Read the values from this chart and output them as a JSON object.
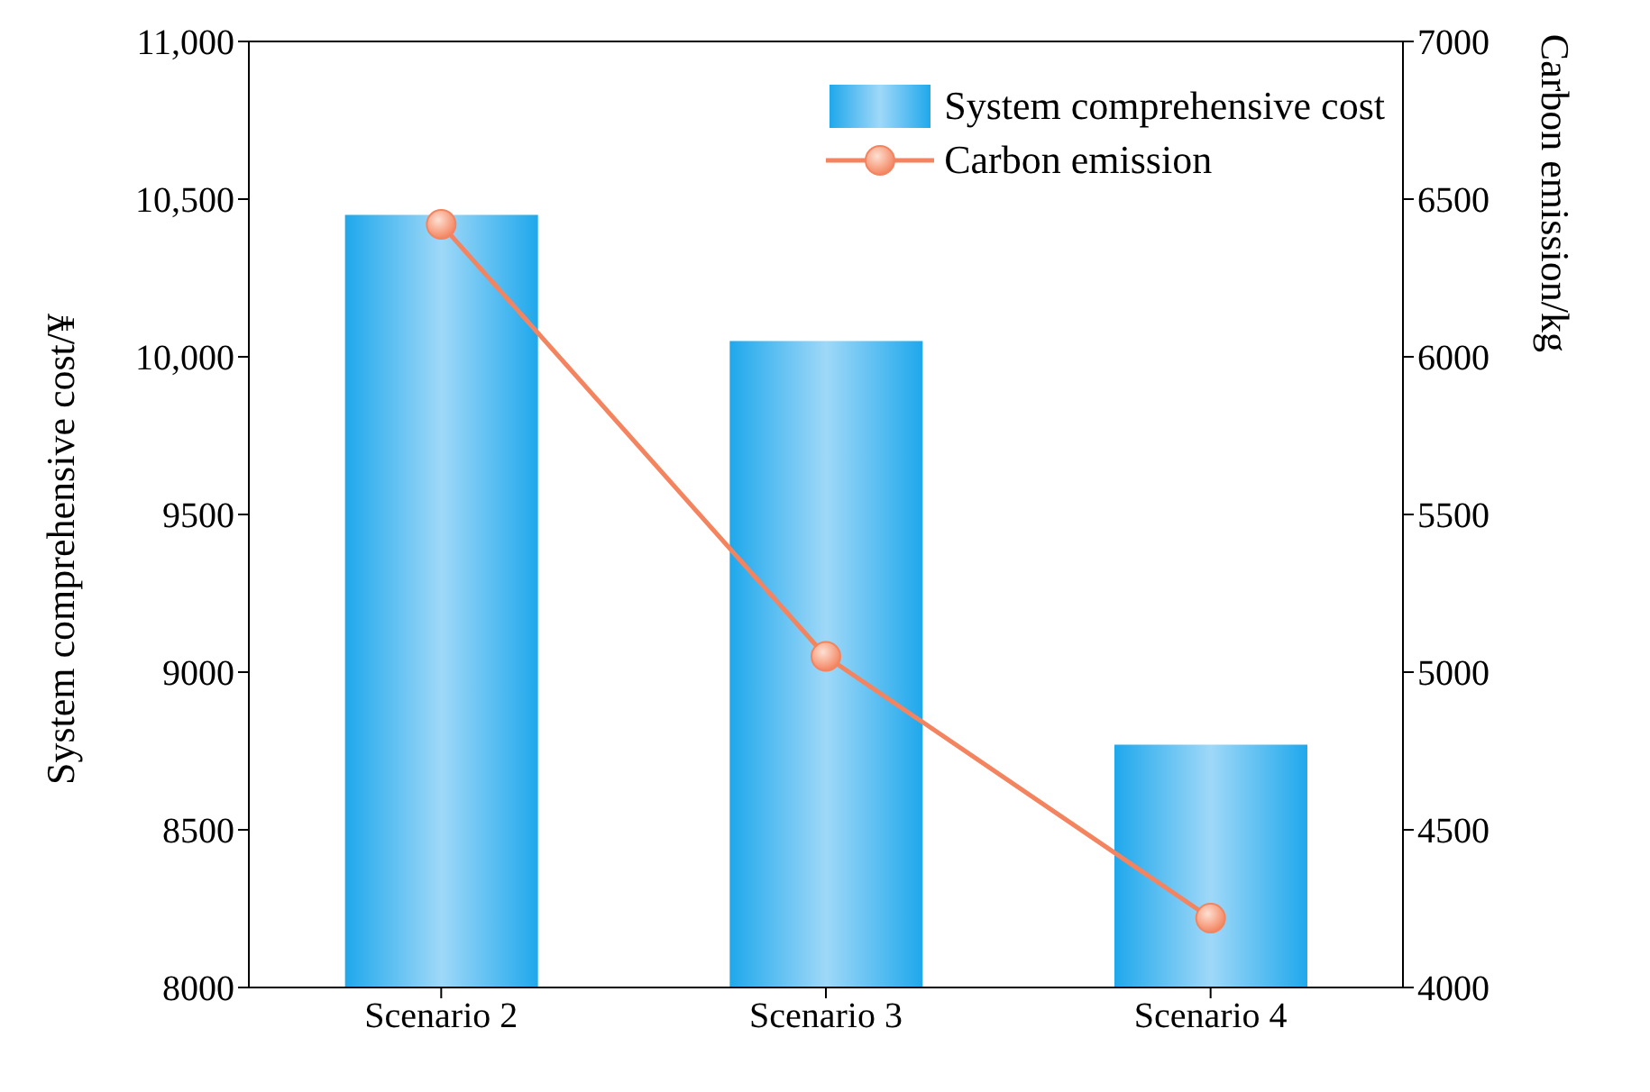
{
  "chart_data": {
    "type": "bar",
    "categories": [
      "Scenario 2",
      "Scenario 3",
      "Scenario 4"
    ],
    "ylabel": "System comprehensive cost/¥",
    "y2label": "Carbon emission/kg",
    "ylim": [
      8000,
      11000
    ],
    "yticks": [
      8000,
      8500,
      9000,
      9500,
      {
        "value": 10000,
        "label": "10,000"
      },
      {
        "value": 10500,
        "label": "10,500"
      },
      {
        "value": 11000,
        "label": "11,000"
      }
    ],
    "y2lim": [
      4000,
      7000
    ],
    "y2ticks": [
      4000,
      4500,
      5000,
      5500,
      6000,
      6500,
      7000
    ],
    "series": [
      {
        "name": "System comprehensive cost",
        "color": "#1fa8ec",
        "values": [
          10450,
          10050,
          8770
        ]
      },
      {
        "name": "Carbon emission",
        "type": "line",
        "axis": "y2",
        "color": "#f4845f",
        "values": [
          6420,
          5050,
          4220
        ]
      }
    ],
    "marker": "circle",
    "legend": "top right",
    "grid": false
  }
}
